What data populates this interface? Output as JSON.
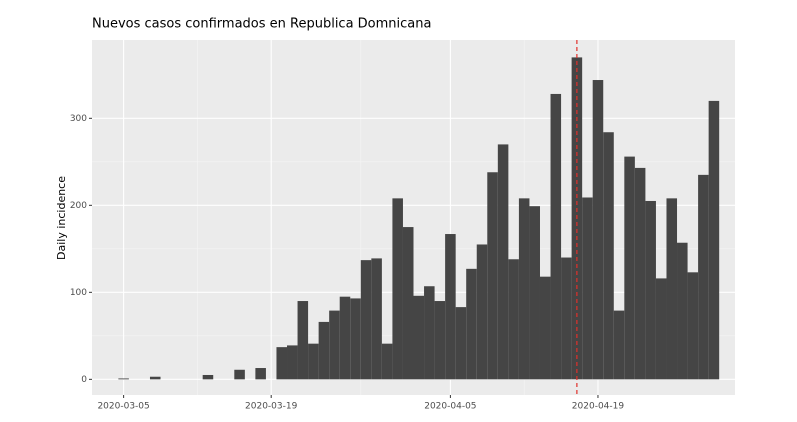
{
  "chart_data": {
    "type": "bar",
    "title": "Nuevos casos confirmados en Republica Domnicana",
    "y_label": "Daily incidence",
    "x": [
      "2020-03-05",
      "2020-03-08",
      "2020-03-13",
      "2020-03-16",
      "2020-03-18",
      "2020-03-20",
      "2020-03-21",
      "2020-03-22",
      "2020-03-23",
      "2020-03-24",
      "2020-03-25",
      "2020-03-26",
      "2020-03-27",
      "2020-03-28",
      "2020-03-29",
      "2020-03-30",
      "2020-03-31",
      "2020-04-01",
      "2020-04-02",
      "2020-04-03",
      "2020-04-04",
      "2020-04-05",
      "2020-04-06",
      "2020-04-07",
      "2020-04-08",
      "2020-04-09",
      "2020-04-10",
      "2020-04-11",
      "2020-04-12",
      "2020-04-13",
      "2020-04-14",
      "2020-04-15",
      "2020-04-16",
      "2020-04-17",
      "2020-04-18",
      "2020-04-19",
      "2020-04-20",
      "2020-04-21",
      "2020-04-22",
      "2020-04-23",
      "2020-04-24",
      "2020-04-25",
      "2020-04-26",
      "2020-04-27",
      "2020-04-28",
      "2020-04-29",
      "2020-04-30"
    ],
    "values": [
      1,
      3,
      5,
      11,
      13,
      37,
      39,
      90,
      41,
      66,
      79,
      95,
      93,
      137,
      139,
      41,
      208,
      175,
      96,
      107,
      90,
      167,
      83,
      127,
      155,
      238,
      270,
      138,
      208,
      199,
      118,
      328,
      140,
      370,
      209,
      344,
      284,
      79,
      256,
      243,
      205,
      116,
      208,
      157,
      123,
      235,
      320
    ],
    "color": "#454545",
    "vline": "2020-04-17",
    "vline_color": "#e0302a",
    "xlim": [
      "2020-03-02",
      "2020-05-02"
    ],
    "xticks": [
      "2020-03-05",
      "2020-03-19",
      "2020-04-05",
      "2020-04-19"
    ],
    "ylim": [
      -18,
      390
    ],
    "yticks": [
      0,
      100,
      200,
      300
    ],
    "grid": true
  }
}
